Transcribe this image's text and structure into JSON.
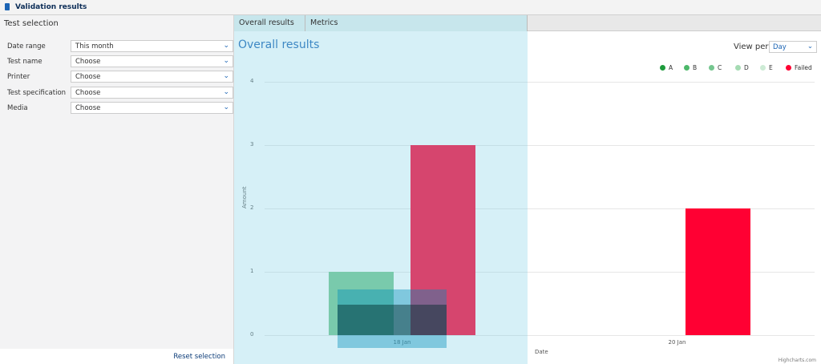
{
  "header": {
    "title": "Validation results",
    "icon": "clipboard-icon"
  },
  "sidebar": {
    "title": "Test selection",
    "filters": [
      {
        "label": "Date range",
        "value": "This month"
      },
      {
        "label": "Test name",
        "value": "Choose"
      },
      {
        "label": "Printer",
        "value": "Choose"
      },
      {
        "label": "Test specification",
        "value": "Choose"
      },
      {
        "label": "Media",
        "value": "Choose"
      }
    ],
    "reset_label": "Reset selection"
  },
  "tabs": [
    {
      "label": "Overall results",
      "active": true
    },
    {
      "label": "Metrics"
    }
  ],
  "main": {
    "title": "Overall results",
    "view_per_label": "View per",
    "view_per_value": "Day",
    "credit": "Highcharts.com"
  },
  "chart_data": {
    "type": "bar",
    "categories": [
      "18 Jan",
      "20 Jan"
    ],
    "xlabel": "Date",
    "ylabel": "Amount",
    "ylim": [
      0,
      4
    ],
    "yticks": [
      "0",
      "1",
      "2",
      "3",
      "4"
    ],
    "grid": true,
    "legend_position": "top-right",
    "legend": [
      {
        "name": "A",
        "color": "#1e9b3c"
      },
      {
        "name": "B",
        "color": "#4db86a"
      },
      {
        "name": "C",
        "color": "#75c68f"
      },
      {
        "name": "D",
        "color": "#a5dbb3"
      },
      {
        "name": "E",
        "color": "#cdebd5"
      },
      {
        "name": "Failed",
        "color": "#ff0033"
      }
    ],
    "series": [
      {
        "name": "C",
        "color": "#75c68f",
        "values": [
          1,
          0
        ]
      },
      {
        "name": "Failed",
        "color": "#ff0033",
        "values": [
          3,
          2
        ]
      }
    ]
  }
}
